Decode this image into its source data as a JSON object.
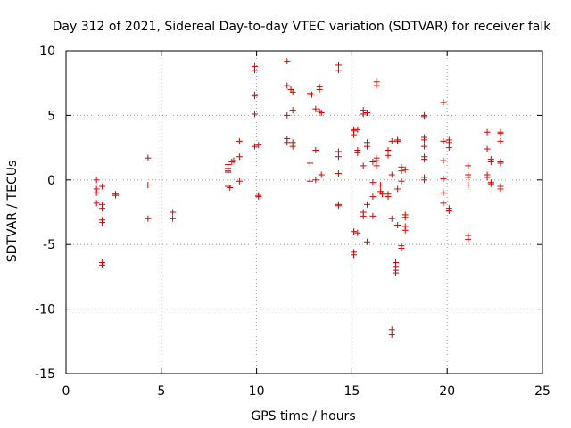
{
  "chart_data": {
    "type": "scatter",
    "title": "Day 312 of 2021, Sidereal Day-to-day VTEC variation (SDTVAR) for receiver falk",
    "xlabel": "GPS time / hours",
    "ylabel": "SDTVAR / TECUs",
    "xlim": [
      0,
      25
    ],
    "ylim": [
      -15,
      10
    ],
    "xticks": [
      0,
      5,
      10,
      15,
      20,
      25
    ],
    "yticks": [
      -15,
      -10,
      -5,
      0,
      5,
      10
    ],
    "grid": true,
    "marker": "+",
    "color": "#e00000",
    "points": [
      [
        1.6,
        0.0
      ],
      [
        1.6,
        -0.7
      ],
      [
        1.6,
        -1.0
      ],
      [
        1.6,
        -1.8
      ],
      [
        1.9,
        -0.5
      ],
      [
        1.9,
        -1.9
      ],
      [
        1.9,
        -2.2
      ],
      [
        1.9,
        -3.1
      ],
      [
        1.9,
        -3.3
      ],
      [
        1.9,
        -6.4
      ],
      [
        1.9,
        -6.6
      ],
      [
        2.6,
        -1.1
      ],
      [
        2.6,
        -1.2
      ],
      [
        4.3,
        1.7
      ],
      [
        4.3,
        -0.4
      ],
      [
        4.3,
        -3.0
      ],
      [
        5.6,
        -2.5
      ],
      [
        5.6,
        -3.0
      ],
      [
        8.5,
        1.2
      ],
      [
        8.5,
        0.9
      ],
      [
        8.5,
        0.7
      ],
      [
        8.5,
        0.6
      ],
      [
        8.5,
        -0.5
      ],
      [
        8.6,
        -0.6
      ],
      [
        8.7,
        1.4
      ],
      [
        8.8,
        1.5
      ],
      [
        9.1,
        3.0
      ],
      [
        9.1,
        1.8
      ],
      [
        9.1,
        -0.1
      ],
      [
        9.9,
        8.8
      ],
      [
        9.9,
        8.5
      ],
      [
        9.9,
        6.6
      ],
      [
        9.9,
        6.5
      ],
      [
        9.9,
        5.1
      ],
      [
        9.9,
        2.6
      ],
      [
        10.1,
        2.7
      ],
      [
        10.1,
        -1.2
      ],
      [
        10.1,
        -1.3
      ],
      [
        11.6,
        9.2
      ],
      [
        11.6,
        7.3
      ],
      [
        11.6,
        5.0
      ],
      [
        11.6,
        3.2
      ],
      [
        11.6,
        2.9
      ],
      [
        11.8,
        7.0
      ],
      [
        11.9,
        6.8
      ],
      [
        11.9,
        5.4
      ],
      [
        11.9,
        2.9
      ],
      [
        11.9,
        2.6
      ],
      [
        12.8,
        1.3
      ],
      [
        12.8,
        -0.1
      ],
      [
        12.8,
        6.7
      ],
      [
        12.9,
        6.6
      ],
      [
        13.1,
        5.5
      ],
      [
        13.1,
        2.3
      ],
      [
        13.1,
        0.0
      ],
      [
        13.3,
        7.2
      ],
      [
        13.3,
        7.0
      ],
      [
        13.3,
        5.3
      ],
      [
        13.4,
        5.2
      ],
      [
        13.4,
        0.4
      ],
      [
        14.3,
        8.9
      ],
      [
        14.3,
        8.5
      ],
      [
        14.3,
        2.2
      ],
      [
        14.3,
        1.8
      ],
      [
        14.3,
        0.5
      ],
      [
        14.3,
        -1.9
      ],
      [
        14.3,
        -2.0
      ],
      [
        15.1,
        3.9
      ],
      [
        15.1,
        3.8
      ],
      [
        15.1,
        3.5
      ],
      [
        15.1,
        -4.0
      ],
      [
        15.1,
        -5.6
      ],
      [
        15.1,
        -5.8
      ],
      [
        15.3,
        3.9
      ],
      [
        15.3,
        2.3
      ],
      [
        15.3,
        2.1
      ],
      [
        15.3,
        -4.1
      ],
      [
        15.6,
        5.4
      ],
      [
        15.6,
        5.1
      ],
      [
        15.6,
        1.1
      ],
      [
        15.6,
        -2.5
      ],
      [
        15.6,
        -2.8
      ],
      [
        15.8,
        5.2
      ],
      [
        15.8,
        2.9
      ],
      [
        15.8,
        2.6
      ],
      [
        15.8,
        -1.9
      ],
      [
        15.8,
        -4.8
      ],
      [
        16.1,
        1.4
      ],
      [
        16.1,
        -0.2
      ],
      [
        16.1,
        -1.3
      ],
      [
        16.1,
        -2.8
      ],
      [
        16.3,
        7.6
      ],
      [
        16.3,
        7.3
      ],
      [
        16.3,
        1.7
      ],
      [
        16.3,
        1.5
      ],
      [
        16.3,
        1.1
      ],
      [
        16.5,
        -0.4
      ],
      [
        16.5,
        -0.9
      ],
      [
        16.6,
        -1.1
      ],
      [
        16.9,
        2.3
      ],
      [
        16.9,
        1.9
      ],
      [
        16.9,
        -1.1
      ],
      [
        16.9,
        -1.3
      ],
      [
        17.1,
        3.0
      ],
      [
        17.1,
        0.4
      ],
      [
        17.1,
        -3.0
      ],
      [
        17.1,
        -11.6
      ],
      [
        17.1,
        -12.0
      ],
      [
        17.4,
        3.1
      ],
      [
        17.4,
        3.0
      ],
      [
        17.4,
        -0.7
      ],
      [
        17.4,
        -3.5
      ],
      [
        17.3,
        -6.4
      ],
      [
        17.3,
        -6.7
      ],
      [
        17.3,
        -7.0
      ],
      [
        17.3,
        -7.2
      ],
      [
        17.6,
        1.0
      ],
      [
        17.6,
        0.7
      ],
      [
        17.6,
        -0.1
      ],
      [
        17.6,
        -5.1
      ],
      [
        17.6,
        -5.3
      ],
      [
        17.8,
        0.8
      ],
      [
        17.8,
        -2.7
      ],
      [
        17.8,
        -2.9
      ],
      [
        17.8,
        -3.6
      ],
      [
        17.8,
        -3.9
      ],
      [
        18.8,
        5.0
      ],
      [
        18.8,
        4.9
      ],
      [
        18.8,
        3.3
      ],
      [
        18.8,
        3.1
      ],
      [
        18.8,
        2.6
      ],
      [
        18.8,
        1.8
      ],
      [
        18.8,
        1.6
      ],
      [
        18.8,
        0.2
      ],
      [
        18.8,
        0.0
      ],
      [
        19.8,
        6.0
      ],
      [
        19.8,
        3.0
      ],
      [
        19.8,
        1.5
      ],
      [
        19.8,
        0.1
      ],
      [
        19.8,
        -1.0
      ],
      [
        19.8,
        -1.8
      ],
      [
        20.1,
        3.1
      ],
      [
        20.1,
        2.9
      ],
      [
        20.1,
        2.5
      ],
      [
        20.1,
        -2.2
      ],
      [
        20.1,
        -2.4
      ],
      [
        21.1,
        1.1
      ],
      [
        21.1,
        0.4
      ],
      [
        21.1,
        0.2
      ],
      [
        21.1,
        -0.4
      ],
      [
        21.1,
        -4.3
      ],
      [
        21.1,
        -4.6
      ],
      [
        22.1,
        3.7
      ],
      [
        22.1,
        2.4
      ],
      [
        22.1,
        0.4
      ],
      [
        22.1,
        0.2
      ],
      [
        22.3,
        1.6
      ],
      [
        22.3,
        1.4
      ],
      [
        22.3,
        -0.2
      ],
      [
        22.3,
        -0.3
      ],
      [
        22.8,
        3.7
      ],
      [
        22.8,
        3.6
      ],
      [
        22.8,
        3.0
      ],
      [
        22.8,
        1.4
      ],
      [
        22.8,
        1.3
      ],
      [
        22.8,
        -0.5
      ],
      [
        22.8,
        -0.7
      ]
    ]
  }
}
